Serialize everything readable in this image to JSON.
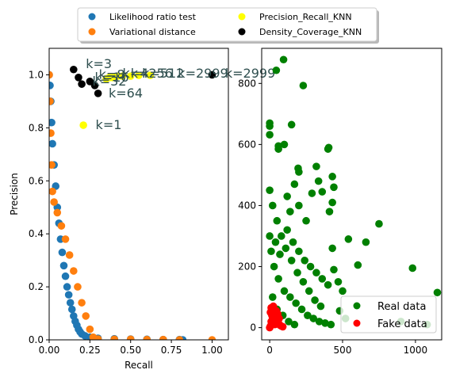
{
  "legend_top": [
    {
      "label": "Likelihood ratio test",
      "color": "#1f77b4"
    },
    {
      "label": "Variational distance",
      "color": "#ff7f0e"
    },
    {
      "label": "Precision_Recall_KNN",
      "color": "#ffff00"
    },
    {
      "label": "Density_Coverage_KNN",
      "color": "#000000"
    }
  ],
  "chart_data": [
    {
      "type": "scatter",
      "xlabel": "Recall",
      "ylabel": "Precision",
      "xlim": [
        0,
        1.1
      ],
      "ylim": [
        0,
        1.1
      ],
      "x_ticks": [
        "0.00",
        "0.25",
        "0.50",
        "0.75",
        "1.00"
      ],
      "x_tick_values": [
        0,
        0.25,
        0.5,
        0.75,
        1.0
      ],
      "y_ticks": [
        "0.0",
        "0.2",
        "0.4",
        "0.6",
        "0.8",
        "1.0"
      ],
      "y_tick_values": [
        0,
        0.2,
        0.4,
        0.6,
        0.8,
        1.0
      ],
      "series": [
        {
          "name": "Likelihood ratio test",
          "color": "#1f77b4",
          "points": [
            [
              0,
              1.0
            ],
            [
              0.005,
              0.96
            ],
            [
              0.01,
              0.9
            ],
            [
              0.015,
              0.82
            ],
            [
              0.02,
              0.74
            ],
            [
              0.03,
              0.66
            ],
            [
              0.04,
              0.58
            ],
            [
              0.05,
              0.5
            ],
            [
              0.06,
              0.44
            ],
            [
              0.07,
              0.38
            ],
            [
              0.08,
              0.33
            ],
            [
              0.09,
              0.28
            ],
            [
              0.1,
              0.24
            ],
            [
              0.11,
              0.2
            ],
            [
              0.12,
              0.17
            ],
            [
              0.13,
              0.14
            ],
            [
              0.14,
              0.115
            ],
            [
              0.15,
              0.09
            ],
            [
              0.16,
              0.07
            ],
            [
              0.17,
              0.055
            ],
            [
              0.18,
              0.04
            ],
            [
              0.19,
              0.03
            ],
            [
              0.2,
              0.022
            ],
            [
              0.22,
              0.015
            ],
            [
              0.25,
              0.01
            ],
            [
              0.3,
              0.006
            ],
            [
              0.4,
              0.004
            ],
            [
              0.5,
              0.003
            ],
            [
              0.6,
              0.002
            ],
            [
              0.7,
              0.001
            ],
            [
              0.8,
              0.001
            ],
            [
              0.82,
              0.0
            ]
          ]
        },
        {
          "name": "Variational distance",
          "color": "#ff7f0e",
          "points": [
            [
              0,
              1.0
            ],
            [
              0.005,
              0.9
            ],
            [
              0.01,
              0.78
            ],
            [
              0.015,
              0.66
            ],
            [
              0.02,
              0.56
            ],
            [
              0.03,
              0.52
            ],
            [
              0.05,
              0.48
            ],
            [
              0.075,
              0.43
            ],
            [
              0.1,
              0.38
            ],
            [
              0.125,
              0.32
            ],
            [
              0.15,
              0.26
            ],
            [
              0.175,
              0.2
            ],
            [
              0.2,
              0.14
            ],
            [
              0.225,
              0.09
            ],
            [
              0.25,
              0.04
            ],
            [
              0.27,
              0.01
            ],
            [
              0.3,
              0.003
            ],
            [
              0.4,
              0.002
            ],
            [
              0.5,
              0.002
            ],
            [
              0.6,
              0.001
            ],
            [
              0.7,
              0.001
            ],
            [
              0.8,
              0.0
            ],
            [
              1.0,
              0.0
            ]
          ]
        },
        {
          "name": "Precision_Recall_KNN",
          "color": "#ffff00",
          "points": [
            [
              0.21,
              0.81
            ],
            [
              0.35,
              0.985
            ],
            [
              0.37,
              0.99
            ],
            [
              0.39,
              0.99
            ],
            [
              0.42,
              0.995
            ],
            [
              0.45,
              0.995
            ],
            [
              0.5,
              0.995
            ],
            [
              0.55,
              0.998
            ],
            [
              0.62,
              0.998
            ]
          ]
        },
        {
          "name": "Density_Coverage_KNN",
          "color": "#000000",
          "points": [
            [
              0.15,
              1.02
            ],
            [
              0.18,
              0.99
            ],
            [
              0.2,
              0.965
            ],
            [
              0.25,
              0.975
            ],
            [
              0.28,
              0.96
            ],
            [
              0.3,
              0.93
            ],
            [
              1.0,
              1.0
            ]
          ]
        }
      ],
      "annotations": [
        {
          "text": "k=1",
          "x": 0.285,
          "y": 0.795
        },
        {
          "text": "k=3",
          "x": 0.225,
          "y": 1.025
        },
        {
          "text": "k=64",
          "x": 0.365,
          "y": 0.915
        },
        {
          "text": "k=32",
          "x": 0.265,
          "y": 0.96
        },
        {
          "text": "k=16",
          "x": 0.28,
          "y": 0.975
        },
        {
          "text": "k=8",
          "x": 0.305,
          "y": 0.985
        },
        {
          "text": "k=4",
          "x": 0.45,
          "y": 0.99
        },
        {
          "text": "k=256",
          "x": 0.5,
          "y": 0.99
        },
        {
          "text": "k=512",
          "x": 0.57,
          "y": 0.99
        },
        {
          "text": "k=2999",
          "x": 0.79,
          "y": 0.99
        },
        {
          "text": "k=2999",
          "x": 1.08,
          "y": 0.99
        }
      ]
    },
    {
      "type": "scatter",
      "xlim": [
        -55,
        1180
      ],
      "ylim": [
        -40,
        915
      ],
      "x_ticks": [
        "0",
        "500",
        "1000"
      ],
      "x_tick_values": [
        0,
        500,
        1000
      ],
      "y_ticks": [
        "0",
        "200",
        "400",
        "600",
        "800"
      ],
      "y_tick_values": [
        0,
        200,
        400,
        600,
        800
      ],
      "legend": {
        "position": "lower right"
      },
      "series": [
        {
          "name": "Real data",
          "color": "#008000",
          "points": [
            [
              95,
              878
            ],
            [
              45,
              843
            ],
            [
              230,
              793
            ],
            [
              0,
              670
            ],
            [
              0,
              660
            ],
            [
              150,
              665
            ],
            [
              0,
              632
            ],
            [
              60,
              595
            ],
            [
              60,
              585
            ],
            [
              100,
              600
            ],
            [
              195,
              522
            ],
            [
              200,
              510
            ],
            [
              320,
              528
            ],
            [
              405,
              590
            ],
            [
              400,
              585
            ],
            [
              335,
              480
            ],
            [
              290,
              440
            ],
            [
              430,
              495
            ],
            [
              440,
              460
            ],
            [
              360,
              445
            ],
            [
              430,
              410
            ],
            [
              410,
              380
            ],
            [
              140,
              380
            ],
            [
              750,
              340
            ],
            [
              540,
              290
            ],
            [
              660,
              280
            ],
            [
              430,
              260
            ],
            [
              605,
              205
            ],
            [
              440,
              190
            ],
            [
              980,
              195
            ],
            [
              470,
              150
            ],
            [
              500,
              120
            ],
            [
              1150,
              115
            ],
            [
              480,
              55
            ],
            [
              520,
              30
            ],
            [
              900,
              20
            ],
            [
              1080,
              10
            ],
            [
              0,
              450
            ],
            [
              20,
              400
            ],
            [
              50,
              350
            ],
            [
              80,
              300
            ],
            [
              110,
              260
            ],
            [
              150,
              220
            ],
            [
              190,
              180
            ],
            [
              230,
              150
            ],
            [
              270,
              120
            ],
            [
              310,
              90
            ],
            [
              350,
              70
            ],
            [
              30,
              200
            ],
            [
              60,
              160
            ],
            [
              100,
              120
            ],
            [
              140,
              100
            ],
            [
              180,
              80
            ],
            [
              220,
              60
            ],
            [
              260,
              40
            ],
            [
              300,
              30
            ],
            [
              340,
              20
            ],
            [
              380,
              15
            ],
            [
              420,
              10
            ],
            [
              20,
              100
            ],
            [
              50,
              60
            ],
            [
              90,
              40
            ],
            [
              130,
              20
            ],
            [
              170,
              10
            ],
            [
              0,
              300
            ],
            [
              10,
              250
            ],
            [
              40,
              280
            ],
            [
              70,
              240
            ],
            [
              120,
              320
            ],
            [
              160,
              280
            ],
            [
              200,
              250
            ],
            [
              240,
              220
            ],
            [
              280,
              200
            ],
            [
              320,
              180
            ],
            [
              360,
              160
            ],
            [
              400,
              140
            ],
            [
              200,
              400
            ],
            [
              250,
              350
            ],
            [
              170,
              470
            ],
            [
              120,
              430
            ]
          ]
        },
        {
          "name": "Fake data",
          "color": "#ff0000",
          "points": [
            [
              0,
              0
            ],
            [
              5,
              5
            ],
            [
              10,
              20
            ],
            [
              15,
              40
            ],
            [
              20,
              60
            ],
            [
              25,
              70
            ],
            [
              30,
              50
            ],
            [
              40,
              35
            ],
            [
              50,
              25
            ],
            [
              60,
              15
            ],
            [
              70,
              8
            ],
            [
              80,
              5
            ],
            [
              90,
              3
            ],
            [
              5,
              50
            ],
            [
              10,
              65
            ],
            [
              20,
              30
            ],
            [
              35,
              10
            ],
            [
              45,
              55
            ],
            [
              55,
              45
            ],
            [
              65,
              30
            ]
          ]
        }
      ]
    }
  ]
}
